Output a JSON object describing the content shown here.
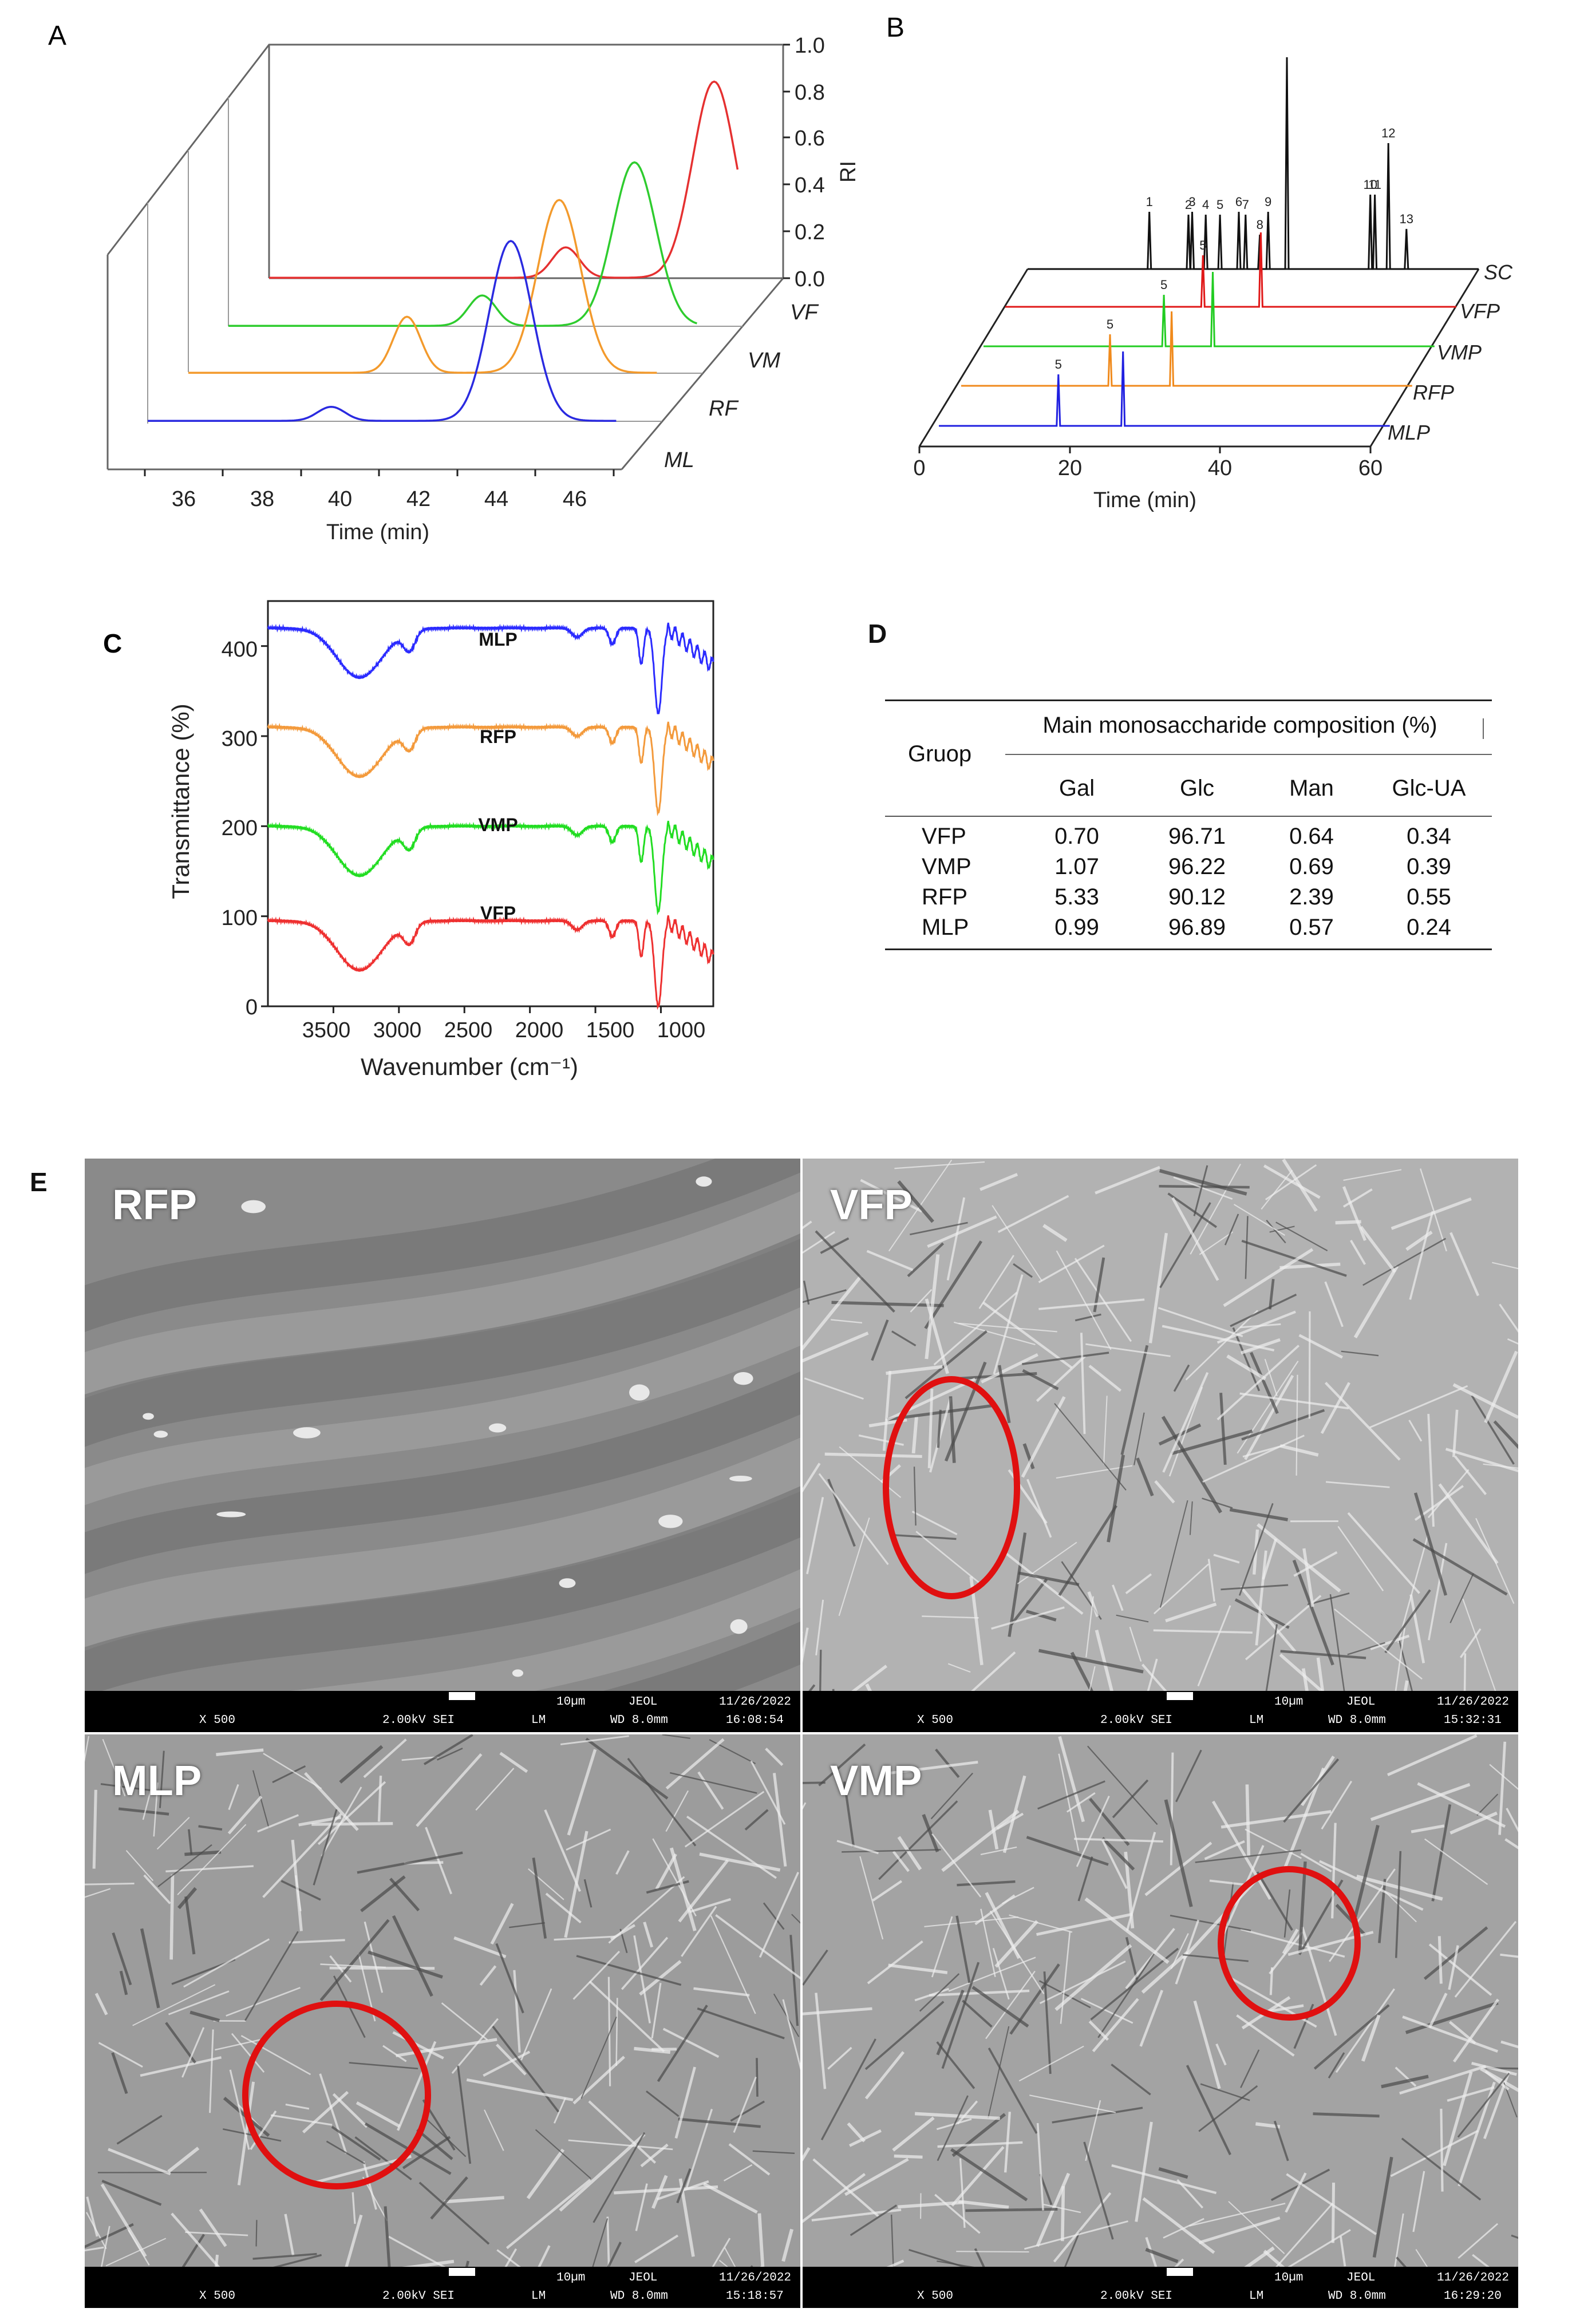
{
  "panelA": {
    "label": "A",
    "ylabel": "RI",
    "xlabel": "Time (min)",
    "xticks": [
      "36",
      "38",
      "40",
      "42",
      "44",
      "46"
    ],
    "yticks": [
      "0.0",
      "0.2",
      "0.4",
      "0.6",
      "0.8",
      "1.0"
    ],
    "colors": {
      "VF": "#e53030",
      "VM": "#2ecc2e",
      "RF": "#f39a2c",
      "ML": "#2a2ae0"
    }
  },
  "panelB": {
    "label": "B",
    "xlabel": "Time (min)",
    "xticks": [
      "0",
      "20",
      "40",
      "60"
    ],
    "peaks": [
      "1",
      "2",
      "3",
      "4",
      "5",
      "6",
      "7",
      "8",
      "9",
      "10",
      "11",
      "12",
      "13",
      "5",
      "5",
      "5",
      "5"
    ],
    "colors": {
      "SC": "#111111",
      "VFP": "#e01818",
      "VMP": "#22cc22",
      "RFP": "#f08a1c",
      "MLP": "#2020e0"
    }
  },
  "panelC": {
    "label": "C",
    "ylabel": "Transmittance (%)",
    "xlabel": "Wavenumber (cm⁻¹)",
    "xticks": [
      "3500",
      "3000",
      "2500",
      "2000",
      "1500",
      "1000"
    ],
    "yticks": [
      "0",
      "100",
      "200",
      "300",
      "400"
    ],
    "colors": {
      "MLP": "#2b2bff",
      "RFP": "#f39a3c",
      "VMP": "#22dd22",
      "VFP": "#ee3030"
    }
  },
  "panelD": {
    "label": "D",
    "group_header": "Gruop",
    "composition_header": "Main monosaccharide composition (%)",
    "columns": [
      "Gal",
      "Glc",
      "Man",
      "Glc-UA"
    ],
    "rows": [
      {
        "group": "VFP",
        "values": [
          "0.70",
          "96.71",
          "0.64",
          "0.34"
        ]
      },
      {
        "group": "VMP",
        "values": [
          "1.07",
          "96.22",
          "0.69",
          "0.39"
        ]
      },
      {
        "group": "RFP",
        "values": [
          "5.33",
          "90.12",
          "2.39",
          "0.55"
        ]
      },
      {
        "group": "MLP",
        "values": [
          "0.99",
          "96.89",
          "0.57",
          "0.24"
        ]
      }
    ]
  },
  "panelE": {
    "label": "E",
    "images": [
      {
        "label": "RFP",
        "mag": "X 500",
        "kv": "2.00kV SEI",
        "mode": "LM",
        "wd": "WD 8.0mm",
        "scale": "10µm",
        "brand": "JEOL",
        "date": "11/26/2022",
        "time": "16:08:54"
      },
      {
        "label": "VFP",
        "mag": "X 500",
        "kv": "2.00kV SEI",
        "mode": "LM",
        "wd": "WD 8.0mm",
        "scale": "10µm",
        "brand": "JEOL",
        "date": "11/26/2022",
        "time": "15:32:31"
      },
      {
        "label": "MLP",
        "mag": "X 500",
        "kv": "2.00kV SEI",
        "mode": "LM",
        "wd": "WD 8.0mm",
        "scale": "10µm",
        "brand": "JEOL",
        "date": "11/26/2022",
        "time": "15:18:57"
      },
      {
        "label": "VMP",
        "mag": "X 500",
        "kv": "2.00kV SEI",
        "mode": "LM",
        "wd": "WD 8.0mm",
        "scale": "10µm",
        "brand": "JEOL",
        "date": "11/26/2022",
        "time": "16:29:20"
      }
    ]
  },
  "chart_data": [
    {
      "type": "line",
      "panel": "A",
      "xlabel": "Time (min)",
      "ylabel": "RI",
      "xlim": [
        35,
        47
      ],
      "ylim": [
        0.0,
        1.0
      ],
      "series": [
        {
          "name": "VF",
          "peaks": [
            {
              "x": 42.6,
              "y": 0.13
            },
            {
              "x": 46.4,
              "y": 0.84
            }
          ]
        },
        {
          "name": "VM",
          "peaks": [
            {
              "x": 41.5,
              "y": 0.13
            },
            {
              "x": 45.4,
              "y": 0.7
            }
          ]
        },
        {
          "name": "RF",
          "peaks": [
            {
              "x": 40.6,
              "y": 0.24
            },
            {
              "x": 44.5,
              "y": 0.74
            }
          ]
        },
        {
          "name": "ML",
          "peaks": [
            {
              "x": 39.7,
              "y": 0.06
            },
            {
              "x": 44.3,
              "y": 0.77
            }
          ]
        }
      ]
    },
    {
      "type": "line",
      "panel": "B",
      "xlabel": "Time (min)",
      "xlim": [
        0,
        60
      ],
      "series": [
        {
          "name": "SC",
          "peaks": [
            {
              "label": "1",
              "x": 16.2
            },
            {
              "label": "2",
              "x": 21.4
            },
            {
              "label": "3",
              "x": 21.9
            },
            {
              "label": "4",
              "x": 23.7
            },
            {
              "label": "5",
              "x": 25.6
            },
            {
              "label": "6",
              "x": 28.1
            },
            {
              "label": "7",
              "x": 29.0
            },
            {
              "label": "8",
              "x": 30.9
            },
            {
              "label": "9",
              "x": 32.0
            },
            {
              "label": "10",
              "x": 45.6
            },
            {
              "label": "11",
              "x": 46.2
            },
            {
              "label": "12",
              "x": 48.0
            },
            {
              "label": "13",
              "x": 50.4
            }
          ]
        },
        {
          "name": "VFP",
          "peaks": [
            {
              "label": "5",
              "x": 26.3
            }
          ]
        },
        {
          "name": "VMP",
          "peaks": [
            {
              "label": "5",
              "x": 24.0
            }
          ]
        },
        {
          "name": "RFP",
          "peaks": [
            {
              "label": "5",
              "x": 19.8
            }
          ]
        },
        {
          "name": "MLP",
          "peaks": [
            {
              "label": "5",
              "x": 15.9
            }
          ]
        }
      ]
    },
    {
      "type": "line",
      "panel": "C",
      "xlabel": "Wavenumber (cm⁻¹)",
      "ylabel": "Transmittance (%)",
      "xlim": [
        4000,
        600
      ],
      "ylim": [
        0,
        450
      ],
      "series": [
        {
          "name": "MLP",
          "offset": 420
        },
        {
          "name": "RFP",
          "offset": 310
        },
        {
          "name": "VMP",
          "offset": 200
        },
        {
          "name": "VFP",
          "offset": 95
        }
      ]
    },
    {
      "type": "table",
      "panel": "D",
      "columns": [
        "Gal",
        "Glc",
        "Man",
        "Glc-UA"
      ],
      "rows": {
        "VFP": [
          0.7,
          96.71,
          0.64,
          0.34
        ],
        "VMP": [
          1.07,
          96.22,
          0.69,
          0.39
        ],
        "RFP": [
          5.33,
          90.12,
          2.39,
          0.55
        ],
        "MLP": [
          0.99,
          96.89,
          0.57,
          0.24
        ]
      }
    }
  ]
}
